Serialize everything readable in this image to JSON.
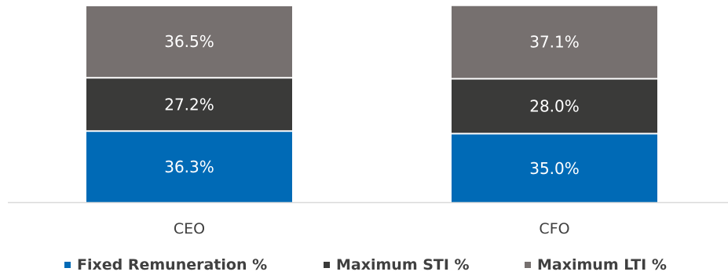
{
  "chart_data": {
    "type": "bar",
    "stacked": true,
    "categories": [
      "CEO",
      "CFO"
    ],
    "series": [
      {
        "name": "Fixed Remuneration %",
        "values": [
          36.3,
          35.0
        ],
        "labels": [
          "36.3%",
          "35.0%"
        ],
        "color": "#006ab6"
      },
      {
        "name": "Maximum STI %",
        "values": [
          27.2,
          28.0
        ],
        "labels": [
          "27.2%",
          "28.0%"
        ],
        "color": "#3a3a39"
      },
      {
        "name": "Maximum LTI %",
        "values": [
          36.5,
          37.1
        ],
        "labels": [
          "36.5%",
          "37.1%"
        ],
        "color": "#76706f"
      }
    ],
    "ylim": [
      0,
      100
    ],
    "legend": "bottom",
    "grid": false,
    "axis_color": "#d9d9d9"
  }
}
